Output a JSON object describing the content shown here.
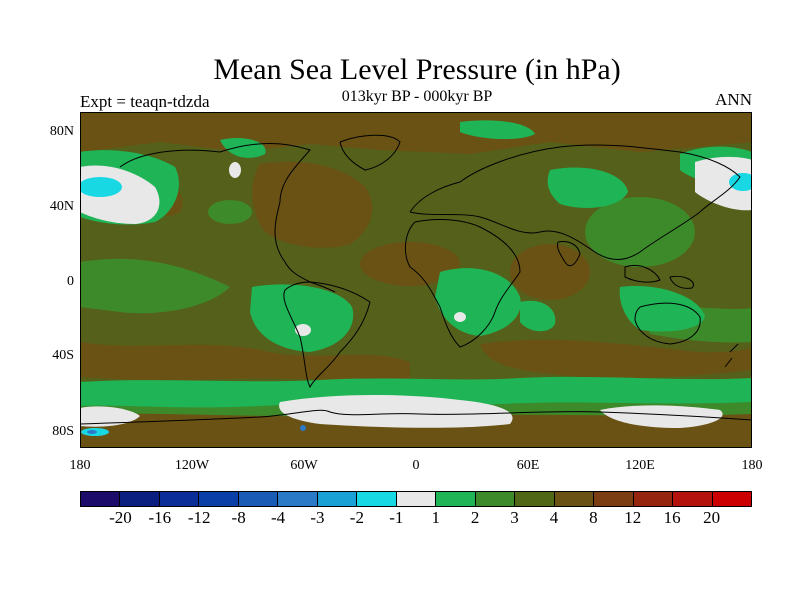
{
  "title": "Mean Sea Level Pressure (in hPa)",
  "subtitle": "013kyr BP - 000kyr BP",
  "left_label": "Expt = teaqn-tdzda",
  "right_label": "ANN",
  "lat_labels": [
    "80N",
    "40N",
    "0",
    "40S",
    "80S"
  ],
  "lon_labels": [
    "180",
    "120W",
    "60W",
    "0",
    "60E",
    "120E",
    "180"
  ],
  "colorbar": {
    "labels": [
      "-20",
      "-16",
      "-12",
      "-8",
      "-4",
      "-3",
      "-2",
      "-1",
      "1",
      "2",
      "3",
      "4",
      "8",
      "12",
      "16",
      "20"
    ],
    "colors": [
      "#1d0b6a",
      "#0b1f80",
      "#0b2d98",
      "#0a3fa8",
      "#1a5cb5",
      "#2a7ac8",
      "#19a1d6",
      "#18d8e4",
      "#e8e8e8",
      "#1fb456",
      "#3d8a2a",
      "#4f6716",
      "#6a5214",
      "#7a3e12",
      "#962510",
      "#b3130c",
      "#cc0000"
    ]
  },
  "colors": {
    "background_field": "#55601a",
    "coast": "#000000"
  }
}
